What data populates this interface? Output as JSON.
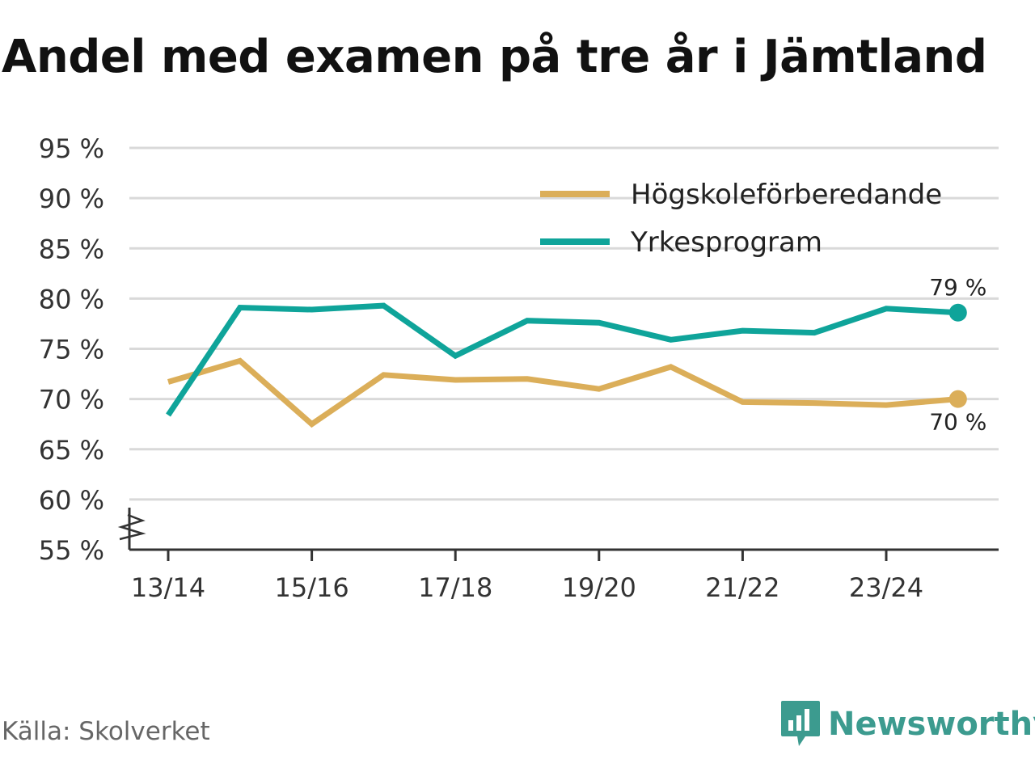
{
  "title": "Andel med examen på tre år i Jämtland",
  "source": "Källa: Skolverket",
  "brand": {
    "name": "Newsworthy",
    "icon": "newsworthy-logo-icon",
    "color": "#3c9b8f"
  },
  "colors": {
    "hogskola": "#dbae59",
    "yrke": "#0fa49a",
    "grid": "#d9d9d9",
    "axis": "#333333"
  },
  "chart_data": {
    "type": "line",
    "title": "Andel med examen på tre år i Jämtland",
    "xlabel": "",
    "ylabel": "",
    "x": [
      "13/14",
      "14/15",
      "15/16",
      "16/17",
      "17/18",
      "18/19",
      "19/20",
      "20/21",
      "21/22",
      "22/23",
      "23/24",
      "24/25"
    ],
    "x_tick_labels": [
      "13/14",
      "15/16",
      "17/18",
      "19/20",
      "21/22",
      "23/24"
    ],
    "ylim": [
      55,
      95
    ],
    "y_ticks": [
      55,
      60,
      65,
      70,
      75,
      80,
      85,
      90,
      95
    ],
    "y_tick_labels": [
      "55 %",
      "60 %",
      "65 %",
      "70 %",
      "75 %",
      "80 %",
      "85 %",
      "90 %",
      "95 %"
    ],
    "axis_break": true,
    "grid": true,
    "legend_position": "top-right",
    "series": [
      {
        "name": "Högskoleförberedande",
        "color": "#dbae59",
        "values": [
          71.7,
          73.8,
          67.5,
          72.4,
          71.9,
          72.0,
          71.0,
          73.2,
          69.7,
          69.6,
          69.4,
          70.0
        ],
        "end_label": "70 %",
        "end_label_position": "below"
      },
      {
        "name": "Yrkesprogram",
        "color": "#0fa49a",
        "values": [
          68.4,
          79.1,
          78.9,
          79.3,
          74.3,
          77.8,
          77.6,
          75.9,
          76.8,
          76.6,
          79.0,
          78.6
        ],
        "end_label": "79 %",
        "end_label_position": "above"
      }
    ]
  }
}
